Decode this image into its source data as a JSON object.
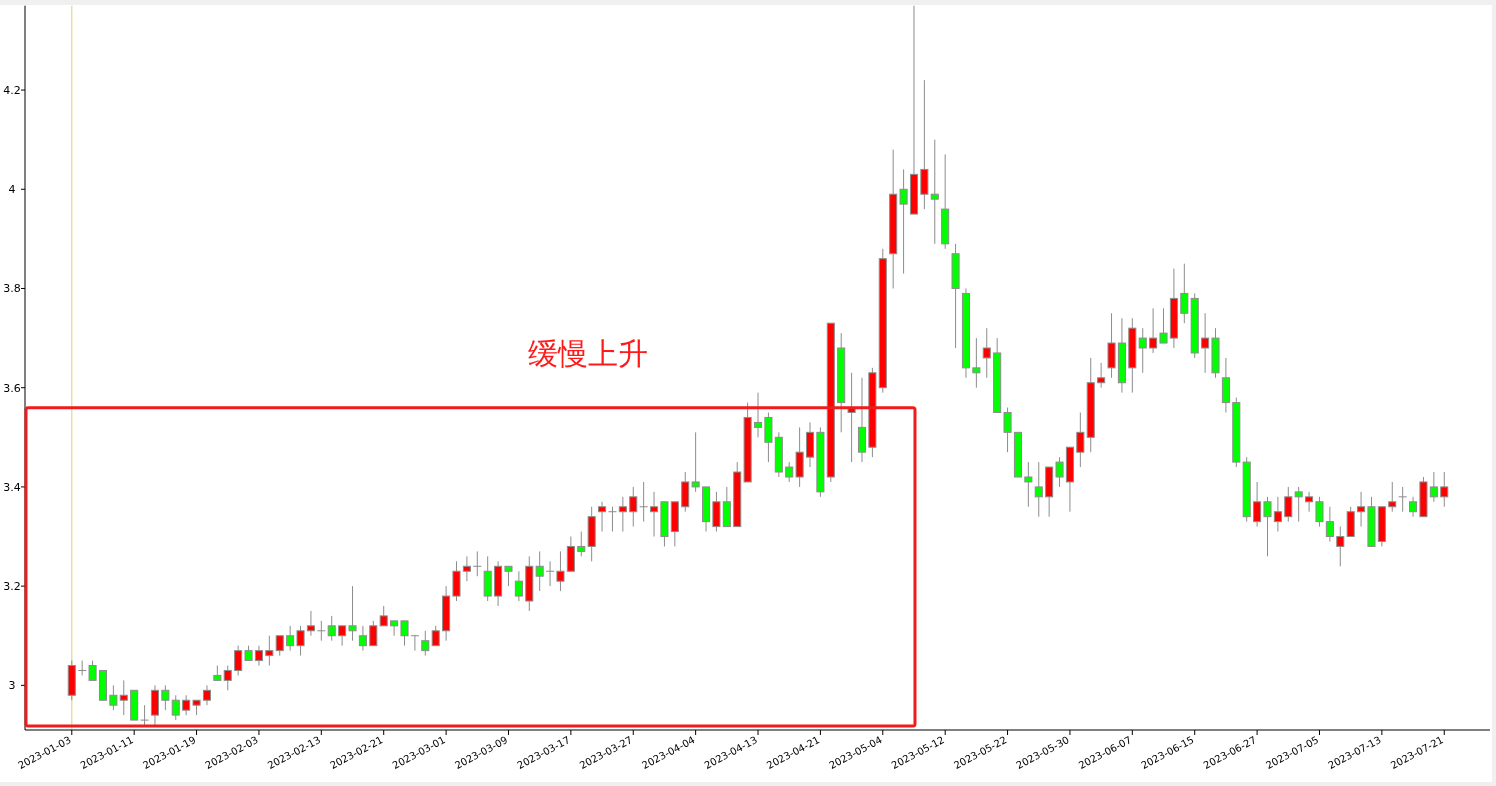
{
  "chart_data": {
    "type": "candlestick",
    "categories": [
      "2023-01-03",
      null,
      null,
      null,
      null,
      null,
      "2023-01-11",
      null,
      null,
      null,
      null,
      null,
      "2023-01-19",
      null,
      null,
      null,
      null,
      null,
      "2023-02-03",
      null,
      null,
      null,
      null,
      null,
      "2023-02-13",
      null,
      null,
      null,
      null,
      null,
      "2023-02-21",
      null,
      null,
      null,
      null,
      null,
      "2023-03-01",
      null,
      null,
      null,
      null,
      null,
      "2023-03-09",
      null,
      null,
      null,
      null,
      null,
      "2023-03-17",
      null,
      null,
      null,
      null,
      null,
      "2023-03-27",
      null,
      null,
      null,
      null,
      null,
      "2023-04-04",
      null,
      null,
      null,
      null,
      null,
      "2023-04-13",
      null,
      null,
      null,
      null,
      null,
      "2023-04-21",
      null,
      null,
      null,
      null,
      null,
      "2023-05-04",
      null,
      null,
      null,
      null,
      null,
      "2023-05-12",
      null,
      null,
      null,
      null,
      null,
      "2023-05-22",
      null,
      null,
      null,
      null,
      null,
      "2023-05-30",
      null,
      null,
      null,
      null,
      null,
      "2023-06-07",
      null,
      null,
      null,
      null,
      null,
      "2023-06-15",
      null,
      null,
      null,
      null,
      null,
      "2023-06-27",
      null,
      null,
      null,
      null,
      null,
      "2023-07-05",
      null,
      null,
      null,
      null,
      null,
      "2023-07-13",
      null,
      null,
      null,
      null,
      null,
      "2023-07-21"
    ],
    "ohlc": [
      [
        2.98,
        3.05,
        2.97,
        3.04
      ],
      [
        3.03,
        3.05,
        3.02,
        3.03
      ],
      [
        3.04,
        3.05,
        3.01,
        3.01
      ],
      [
        3.03,
        3.03,
        2.97,
        2.97
      ],
      [
        2.98,
        3.0,
        2.95,
        2.96
      ],
      [
        2.97,
        3.01,
        2.94,
        2.98
      ],
      [
        2.99,
        2.99,
        2.93,
        2.93
      ],
      [
        2.93,
        2.96,
        2.92,
        2.93
      ],
      [
        2.94,
        3.0,
        2.92,
        2.99
      ],
      [
        2.99,
        3.0,
        2.95,
        2.97
      ],
      [
        2.97,
        2.98,
        2.93,
        2.94
      ],
      [
        2.95,
        2.98,
        2.94,
        2.97
      ],
      [
        2.96,
        2.97,
        2.94,
        2.97
      ],
      [
        2.97,
        3.0,
        2.96,
        2.99
      ],
      [
        3.02,
        3.04,
        3.01,
        3.01
      ],
      [
        3.01,
        3.04,
        2.99,
        3.03
      ],
      [
        3.03,
        3.08,
        3.02,
        3.07
      ],
      [
        3.07,
        3.08,
        3.05,
        3.05
      ],
      [
        3.05,
        3.08,
        3.04,
        3.07
      ],
      [
        3.06,
        3.1,
        3.04,
        3.07
      ],
      [
        3.07,
        3.1,
        3.06,
        3.1
      ],
      [
        3.1,
        3.12,
        3.07,
        3.08
      ],
      [
        3.08,
        3.12,
        3.06,
        3.11
      ],
      [
        3.11,
        3.15,
        3.1,
        3.12
      ],
      [
        3.11,
        3.13,
        3.09,
        3.11
      ],
      [
        3.12,
        3.14,
        3.09,
        3.1
      ],
      [
        3.1,
        3.12,
        3.08,
        3.12
      ],
      [
        3.12,
        3.2,
        3.09,
        3.11
      ],
      [
        3.1,
        3.12,
        3.07,
        3.08
      ],
      [
        3.08,
        3.13,
        3.08,
        3.12
      ],
      [
        3.12,
        3.16,
        3.12,
        3.14
      ],
      [
        3.13,
        3.13,
        3.1,
        3.12
      ],
      [
        3.13,
        3.13,
        3.08,
        3.1
      ],
      [
        3.1,
        3.1,
        3.07,
        3.1
      ],
      [
        3.09,
        3.11,
        3.06,
        3.07
      ],
      [
        3.08,
        3.12,
        3.08,
        3.11
      ],
      [
        3.11,
        3.2,
        3.09,
        3.18
      ],
      [
        3.18,
        3.25,
        3.17,
        3.23
      ],
      [
        3.23,
        3.26,
        3.21,
        3.24
      ],
      [
        3.24,
        3.27,
        3.22,
        3.24
      ],
      [
        3.23,
        3.26,
        3.17,
        3.18
      ],
      [
        3.18,
        3.25,
        3.16,
        3.24
      ],
      [
        3.24,
        3.24,
        3.2,
        3.23
      ],
      [
        3.21,
        3.23,
        3.17,
        3.18
      ],
      [
        3.17,
        3.26,
        3.15,
        3.24
      ],
      [
        3.24,
        3.27,
        3.19,
        3.22
      ],
      [
        3.23,
        3.25,
        3.2,
        3.23
      ],
      [
        3.21,
        3.27,
        3.19,
        3.23
      ],
      [
        3.23,
        3.3,
        3.23,
        3.28
      ],
      [
        3.28,
        3.31,
        3.26,
        3.27
      ],
      [
        3.28,
        3.36,
        3.25,
        3.34
      ],
      [
        3.35,
        3.37,
        3.31,
        3.36
      ],
      [
        3.35,
        3.36,
        3.31,
        3.35
      ],
      [
        3.35,
        3.38,
        3.31,
        3.36
      ],
      [
        3.35,
        3.4,
        3.32,
        3.38
      ],
      [
        3.36,
        3.41,
        3.33,
        3.36
      ],
      [
        3.35,
        3.39,
        3.3,
        3.36
      ],
      [
        3.37,
        3.37,
        3.28,
        3.3
      ],
      [
        3.31,
        3.37,
        3.28,
        3.37
      ],
      [
        3.36,
        3.43,
        3.35,
        3.41
      ],
      [
        3.41,
        3.51,
        3.39,
        3.4
      ],
      [
        3.4,
        3.4,
        3.31,
        3.33
      ],
      [
        3.32,
        3.39,
        3.31,
        3.37
      ],
      [
        3.37,
        3.4,
        3.32,
        3.32
      ],
      [
        3.32,
        3.45,
        3.32,
        3.43
      ],
      [
        3.41,
        3.57,
        3.41,
        3.54
      ],
      [
        3.53,
        3.59,
        3.5,
        3.52
      ],
      [
        3.54,
        3.55,
        3.45,
        3.49
      ],
      [
        3.5,
        3.51,
        3.42,
        3.43
      ],
      [
        3.44,
        3.45,
        3.41,
        3.42
      ],
      [
        3.42,
        3.52,
        3.4,
        3.47
      ],
      [
        3.46,
        3.53,
        3.44,
        3.51
      ],
      [
        3.51,
        3.52,
        3.38,
        3.39
      ],
      [
        3.42,
        3.73,
        3.41,
        3.73
      ],
      [
        3.68,
        3.71,
        3.51,
        3.57
      ],
      [
        3.55,
        3.63,
        3.45,
        3.56
      ],
      [
        3.52,
        3.62,
        3.45,
        3.47
      ],
      [
        3.48,
        3.64,
        3.46,
        3.63
      ],
      [
        3.6,
        3.88,
        3.59,
        3.86
      ],
      [
        3.87,
        4.08,
        3.8,
        3.99
      ],
      [
        4.0,
        4.04,
        3.83,
        3.97
      ],
      [
        3.95,
        4.37,
        3.95,
        4.03
      ],
      [
        3.99,
        4.22,
        3.96,
        4.04
      ],
      [
        3.99,
        4.1,
        3.89,
        3.98
      ],
      [
        3.96,
        4.07,
        3.88,
        3.89
      ],
      [
        3.87,
        3.89,
        3.68,
        3.8
      ],
      [
        3.79,
        3.8,
        3.62,
        3.64
      ],
      [
        3.64,
        3.7,
        3.6,
        3.63
      ],
      [
        3.66,
        3.72,
        3.62,
        3.68
      ],
      [
        3.67,
        3.7,
        3.55,
        3.55
      ],
      [
        3.55,
        3.56,
        3.47,
        3.51
      ],
      [
        3.51,
        3.51,
        3.42,
        3.42
      ],
      [
        3.42,
        3.45,
        3.36,
        3.41
      ],
      [
        3.4,
        3.45,
        3.34,
        3.38
      ],
      [
        3.38,
        3.44,
        3.34,
        3.44
      ],
      [
        3.45,
        3.46,
        3.4,
        3.42
      ],
      [
        3.41,
        3.48,
        3.35,
        3.48
      ],
      [
        3.47,
        3.55,
        3.44,
        3.51
      ],
      [
        3.5,
        3.66,
        3.47,
        3.61
      ],
      [
        3.61,
        3.65,
        3.6,
        3.62
      ],
      [
        3.64,
        3.75,
        3.62,
        3.69
      ],
      [
        3.69,
        3.74,
        3.59,
        3.61
      ],
      [
        3.64,
        3.74,
        3.59,
        3.72
      ],
      [
        3.7,
        3.72,
        3.63,
        3.68
      ],
      [
        3.68,
        3.76,
        3.67,
        3.7
      ],
      [
        3.71,
        3.76,
        3.69,
        3.69
      ],
      [
        3.7,
        3.84,
        3.68,
        3.78
      ],
      [
        3.79,
        3.85,
        3.73,
        3.75
      ],
      [
        3.78,
        3.79,
        3.66,
        3.67
      ],
      [
        3.68,
        3.75,
        3.63,
        3.7
      ],
      [
        3.7,
        3.72,
        3.62,
        3.63
      ],
      [
        3.62,
        3.66,
        3.55,
        3.57
      ],
      [
        3.57,
        3.58,
        3.44,
        3.45
      ],
      [
        3.45,
        3.46,
        3.33,
        3.34
      ],
      [
        3.33,
        3.41,
        3.32,
        3.37
      ],
      [
        3.37,
        3.38,
        3.26,
        3.34
      ],
      [
        3.33,
        3.38,
        3.31,
        3.35
      ],
      [
        3.34,
        3.4,
        3.33,
        3.38
      ],
      [
        3.39,
        3.4,
        3.33,
        3.38
      ],
      [
        3.37,
        3.39,
        3.35,
        3.38
      ],
      [
        3.37,
        3.38,
        3.32,
        3.33
      ],
      [
        3.33,
        3.36,
        3.29,
        3.3
      ],
      [
        3.28,
        3.32,
        3.24,
        3.3
      ],
      [
        3.3,
        3.36,
        3.3,
        3.35
      ],
      [
        3.35,
        3.39,
        3.32,
        3.36
      ],
      [
        3.36,
        3.38,
        3.28,
        3.28
      ],
      [
        3.29,
        3.36,
        3.28,
        3.36
      ],
      [
        3.36,
        3.41,
        3.35,
        3.37
      ],
      [
        3.38,
        3.4,
        3.35,
        3.38
      ],
      [
        3.37,
        3.38,
        3.34,
        3.35
      ],
      [
        3.34,
        3.42,
        3.34,
        3.41
      ],
      [
        3.4,
        3.43,
        3.37,
        3.38
      ],
      [
        3.38,
        3.43,
        3.36,
        3.4
      ]
    ],
    "colors": [
      "#ff0000",
      "#ff0000",
      "#00ff00",
      "#00ff00",
      "#00ff00",
      "#ff0000",
      "#00ff00",
      "#ff0000",
      "#ff0000",
      "#00ff00",
      "#00ff00",
      "#ff0000",
      "#ff0000",
      "#ff0000",
      "#00ff00",
      "#ff0000",
      "#ff0000",
      "#00ff00",
      "#ff0000",
      "#ff0000",
      "#ff0000",
      "#00ff00",
      "#ff0000",
      "#ff0000",
      "#ff0000",
      "#00ff00",
      "#ff0000",
      "#00ff00",
      "#00ff00",
      "#ff0000",
      "#ff0000",
      "#00ff00",
      "#00ff00",
      "#ff0000",
      "#00ff00",
      "#ff0000",
      "#ff0000",
      "#ff0000",
      "#ff0000",
      "#ff0000",
      "#00ff00",
      "#ff0000",
      "#00ff00",
      "#00ff00",
      "#ff0000",
      "#00ff00",
      "#ff0000",
      "#ff0000",
      "#ff0000",
      "#00ff00",
      "#ff0000",
      "#ff0000",
      "#ff0000",
      "#ff0000",
      "#ff0000",
      "#ff0000",
      "#ff0000",
      "#00ff00",
      "#ff0000",
      "#ff0000",
      "#00ff00",
      "#00ff00",
      "#ff0000",
      "#00ff00",
      "#ff0000",
      "#ff0000",
      "#00ff00",
      "#00ff00",
      "#00ff00",
      "#00ff00",
      "#ff0000",
      "#ff0000",
      "#00ff00",
      "#ff0000",
      "#00ff00",
      "#ff0000",
      "#00ff00",
      "#ff0000",
      "#ff0000",
      "#ff0000",
      "#00ff00",
      "#ff0000",
      "#ff0000",
      "#00ff00",
      "#00ff00",
      "#00ff00",
      "#00ff00",
      "#00ff00",
      "#ff0000",
      "#00ff00",
      "#00ff00",
      "#00ff00",
      "#00ff00",
      "#00ff00",
      "#ff0000",
      "#00ff00",
      "#ff0000",
      "#ff0000",
      "#ff0000",
      "#ff0000",
      "#ff0000",
      "#00ff00",
      "#ff0000",
      "#00ff00",
      "#ff0000",
      "#00ff00",
      "#ff0000",
      "#00ff00",
      "#00ff00",
      "#ff0000",
      "#00ff00",
      "#00ff00",
      "#00ff00",
      "#00ff00",
      "#ff0000",
      "#00ff00",
      "#ff0000",
      "#ff0000",
      "#00ff00",
      "#ff0000",
      "#00ff00",
      "#00ff00",
      "#ff0000",
      "#ff0000",
      "#ff0000",
      "#00ff00",
      "#ff0000",
      "#ff0000",
      "#ff0000",
      "#00ff00",
      "#ff0000",
      "#00ff00",
      "#ff0000"
    ],
    "ylim": [
      2.91,
      4.37
    ],
    "yticks": [
      3,
      3.2,
      3.4,
      3.6,
      3.8,
      4,
      4.2
    ],
    "ref_lines": [
      {
        "axis": "x",
        "value": "2023-01-03",
        "color": "#e0d890"
      }
    ],
    "annotations": [
      "缓慢上升"
    ],
    "grid": false
  }
}
